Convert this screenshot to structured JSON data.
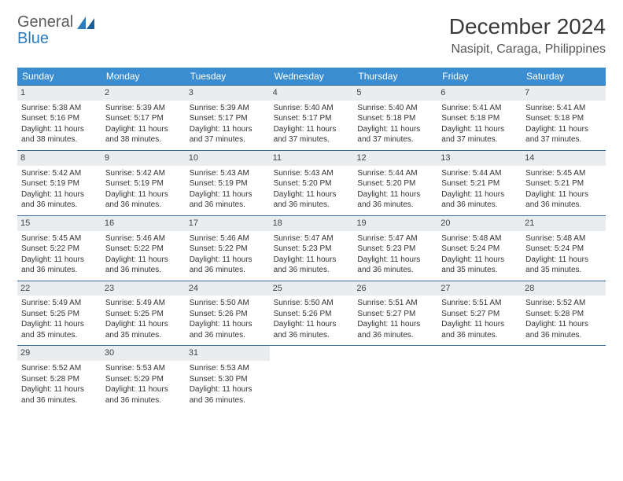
{
  "logo": {
    "word1": "General",
    "word2": "Blue"
  },
  "title": "December 2024",
  "location": "Nasipit, Caraga, Philippines",
  "colors": {
    "header_bg": "#3a8dd0",
    "header_text": "#ffffff",
    "cell_border": "#3a6a9a",
    "daynum_bg": "#e9edf0",
    "logo_gray": "#5a5a5a",
    "logo_blue": "#2b7bbf"
  },
  "dow": [
    "Sunday",
    "Monday",
    "Tuesday",
    "Wednesday",
    "Thursday",
    "Friday",
    "Saturday"
  ],
  "days": [
    {
      "n": "1",
      "sr": "5:38 AM",
      "ss": "5:16 PM",
      "dl": "11 hours and 38 minutes."
    },
    {
      "n": "2",
      "sr": "5:39 AM",
      "ss": "5:17 PM",
      "dl": "11 hours and 38 minutes."
    },
    {
      "n": "3",
      "sr": "5:39 AM",
      "ss": "5:17 PM",
      "dl": "11 hours and 37 minutes."
    },
    {
      "n": "4",
      "sr": "5:40 AM",
      "ss": "5:17 PM",
      "dl": "11 hours and 37 minutes."
    },
    {
      "n": "5",
      "sr": "5:40 AM",
      "ss": "5:18 PM",
      "dl": "11 hours and 37 minutes."
    },
    {
      "n": "6",
      "sr": "5:41 AM",
      "ss": "5:18 PM",
      "dl": "11 hours and 37 minutes."
    },
    {
      "n": "7",
      "sr": "5:41 AM",
      "ss": "5:18 PM",
      "dl": "11 hours and 37 minutes."
    },
    {
      "n": "8",
      "sr": "5:42 AM",
      "ss": "5:19 PM",
      "dl": "11 hours and 36 minutes."
    },
    {
      "n": "9",
      "sr": "5:42 AM",
      "ss": "5:19 PM",
      "dl": "11 hours and 36 minutes."
    },
    {
      "n": "10",
      "sr": "5:43 AM",
      "ss": "5:19 PM",
      "dl": "11 hours and 36 minutes."
    },
    {
      "n": "11",
      "sr": "5:43 AM",
      "ss": "5:20 PM",
      "dl": "11 hours and 36 minutes."
    },
    {
      "n": "12",
      "sr": "5:44 AM",
      "ss": "5:20 PM",
      "dl": "11 hours and 36 minutes."
    },
    {
      "n": "13",
      "sr": "5:44 AM",
      "ss": "5:21 PM",
      "dl": "11 hours and 36 minutes."
    },
    {
      "n": "14",
      "sr": "5:45 AM",
      "ss": "5:21 PM",
      "dl": "11 hours and 36 minutes."
    },
    {
      "n": "15",
      "sr": "5:45 AM",
      "ss": "5:22 PM",
      "dl": "11 hours and 36 minutes."
    },
    {
      "n": "16",
      "sr": "5:46 AM",
      "ss": "5:22 PM",
      "dl": "11 hours and 36 minutes."
    },
    {
      "n": "17",
      "sr": "5:46 AM",
      "ss": "5:22 PM",
      "dl": "11 hours and 36 minutes."
    },
    {
      "n": "18",
      "sr": "5:47 AM",
      "ss": "5:23 PM",
      "dl": "11 hours and 36 minutes."
    },
    {
      "n": "19",
      "sr": "5:47 AM",
      "ss": "5:23 PM",
      "dl": "11 hours and 36 minutes."
    },
    {
      "n": "20",
      "sr": "5:48 AM",
      "ss": "5:24 PM",
      "dl": "11 hours and 35 minutes."
    },
    {
      "n": "21",
      "sr": "5:48 AM",
      "ss": "5:24 PM",
      "dl": "11 hours and 35 minutes."
    },
    {
      "n": "22",
      "sr": "5:49 AM",
      "ss": "5:25 PM",
      "dl": "11 hours and 35 minutes."
    },
    {
      "n": "23",
      "sr": "5:49 AM",
      "ss": "5:25 PM",
      "dl": "11 hours and 35 minutes."
    },
    {
      "n": "24",
      "sr": "5:50 AM",
      "ss": "5:26 PM",
      "dl": "11 hours and 36 minutes."
    },
    {
      "n": "25",
      "sr": "5:50 AM",
      "ss": "5:26 PM",
      "dl": "11 hours and 36 minutes."
    },
    {
      "n": "26",
      "sr": "5:51 AM",
      "ss": "5:27 PM",
      "dl": "11 hours and 36 minutes."
    },
    {
      "n": "27",
      "sr": "5:51 AM",
      "ss": "5:27 PM",
      "dl": "11 hours and 36 minutes."
    },
    {
      "n": "28",
      "sr": "5:52 AM",
      "ss": "5:28 PM",
      "dl": "11 hours and 36 minutes."
    },
    {
      "n": "29",
      "sr": "5:52 AM",
      "ss": "5:28 PM",
      "dl": "11 hours and 36 minutes."
    },
    {
      "n": "30",
      "sr": "5:53 AM",
      "ss": "5:29 PM",
      "dl": "11 hours and 36 minutes."
    },
    {
      "n": "31",
      "sr": "5:53 AM",
      "ss": "5:30 PM",
      "dl": "11 hours and 36 minutes."
    }
  ],
  "labels": {
    "sunrise": "Sunrise:",
    "sunset": "Sunset:",
    "daylight": "Daylight:"
  },
  "layout": {
    "trailing_blanks": 4
  }
}
